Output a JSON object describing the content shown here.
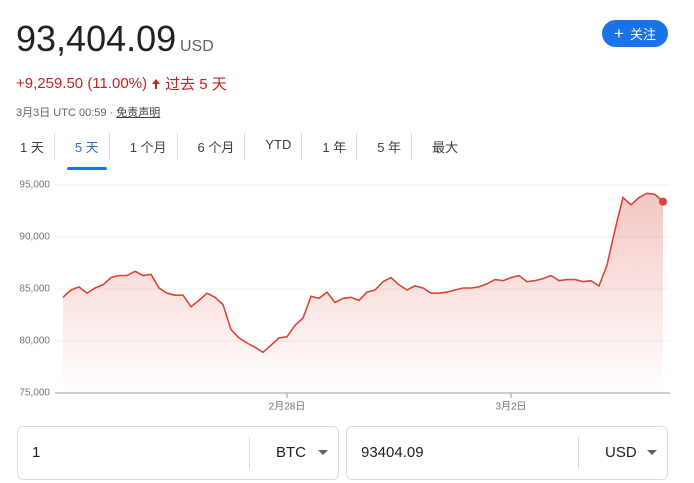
{
  "header": {
    "price": "93,404.09",
    "currency": "USD",
    "follow": "关注",
    "change": "+9,259.50 (11.00%)",
    "period": "过去 5 天",
    "timestamp": "3月3日 UTC 00:59 · ",
    "disclaimer": "免责声明"
  },
  "tabs": {
    "items": [
      "1 天",
      "5 天",
      "1 个月",
      "6 个月",
      "YTD",
      "1 年",
      "5 年",
      "最大"
    ],
    "active": 1
  },
  "chart_data": {
    "type": "line",
    "color": "#db4437",
    "grid": true,
    "categories": [
      null,
      null,
      null,
      null,
      null,
      null,
      null,
      null,
      null,
      null,
      null,
      null,
      null,
      null,
      null,
      null,
      null,
      null,
      null,
      null,
      null,
      null,
      null,
      null,
      null,
      null,
      null,
      null,
      "2月28日",
      null,
      null,
      null,
      null,
      null,
      null,
      null,
      null,
      null,
      null,
      null,
      null,
      null,
      null,
      null,
      null,
      null,
      null,
      null,
      null,
      null,
      null,
      null,
      null,
      null,
      null,
      null,
      "3月2日",
      null,
      null,
      null,
      null,
      null,
      null,
      null,
      null,
      null,
      null,
      null,
      null,
      null,
      null,
      null,
      null,
      null,
      null,
      null
    ],
    "values": [
      84200,
      84900,
      85200,
      84600,
      85100,
      85400,
      86100,
      86300,
      86300,
      86700,
      86300,
      86400,
      85100,
      84600,
      84400,
      84400,
      83300,
      83900,
      84600,
      84200,
      83500,
      81100,
      80300,
      79800,
      79400,
      78900,
      79600,
      80300,
      80400,
      81500,
      82200,
      84300,
      84100,
      84700,
      83700,
      84100,
      84200,
      83900,
      84700,
      84900,
      85700,
      86100,
      85400,
      84900,
      85300,
      85100,
      84600,
      84600,
      84700,
      84900,
      85100,
      85100,
      85200,
      85500,
      85900,
      85800,
      86100,
      86300,
      85700,
      85800,
      86000,
      86300,
      85800,
      85900,
      85900,
      85700,
      85800,
      85300,
      87300,
      90700,
      93800,
      93100,
      93800,
      94200,
      94100,
      93400
    ],
    "ylim": [
      75000,
      95000
    ],
    "yticks": [
      {
        "value": 75000,
        "label": "75,000"
      },
      {
        "value": 80000,
        "label": "80,000"
      },
      {
        "value": 85000,
        "label": "85,000"
      },
      {
        "value": 90000,
        "label": "90,000"
      },
      {
        "value": 95000,
        "label": "95,000"
      }
    ]
  },
  "converter": {
    "from_amount": "1",
    "from_currency": "BTC",
    "to_amount": "93404.09",
    "to_currency": "USD"
  }
}
